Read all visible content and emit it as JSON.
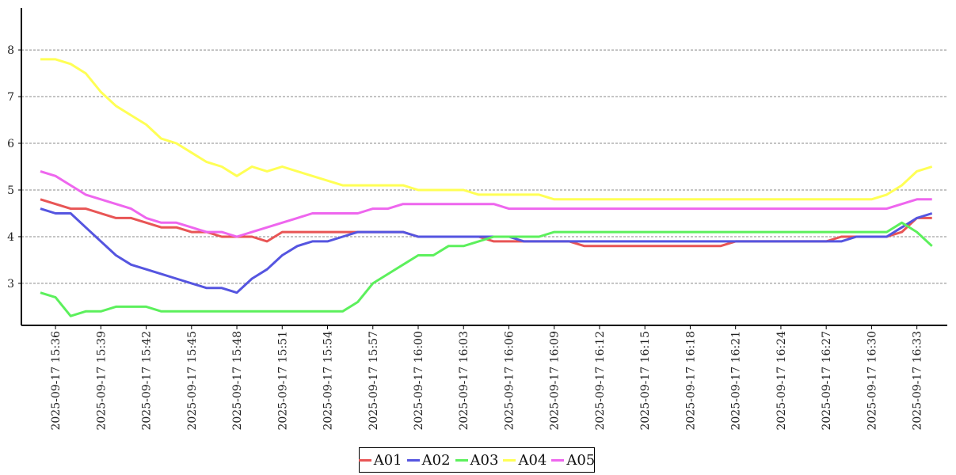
{
  "chart_data": {
    "type": "line",
    "title": "",
    "xlabel": "",
    "ylabel": "",
    "ylim": [
      2.1,
      8.9
    ],
    "yticks": [
      3,
      4,
      5,
      6,
      7,
      8
    ],
    "grid": "horizontal dashed",
    "legend_position": "bottom-center",
    "x_tick_labels": [
      "2025-09-17 15:36",
      "2025-09-17 15:39",
      "2025-09-17 15:42",
      "2025-09-17 15:45",
      "2025-09-17 15:48",
      "2025-09-17 15:51",
      "2025-09-17 15:54",
      "2025-09-17 15:57",
      "2025-09-17 16:00",
      "2025-09-17 16:03",
      "2025-09-17 16:06",
      "2025-09-17 16:09",
      "2025-09-17 16:12",
      "2025-09-17 16:15",
      "2025-09-17 16:18",
      "2025-09-17 16:21",
      "2025-09-17 16:24",
      "2025-09-17 16:27",
      "2025-09-17 16:30",
      "2025-09-17 16:33"
    ],
    "x": [
      "15:35",
      "15:36",
      "15:37",
      "15:38",
      "15:39",
      "15:40",
      "15:41",
      "15:42",
      "15:43",
      "15:44",
      "15:45",
      "15:46",
      "15:47",
      "15:48",
      "15:49",
      "15:50",
      "15:51",
      "15:52",
      "15:53",
      "15:54",
      "15:55",
      "15:56",
      "15:57",
      "15:58",
      "15:59",
      "16:00",
      "16:01",
      "16:02",
      "16:03",
      "16:04",
      "16:05",
      "16:06",
      "16:07",
      "16:08",
      "16:09",
      "16:10",
      "16:11",
      "16:12",
      "16:13",
      "16:14",
      "16:15",
      "16:16",
      "16:17",
      "16:18",
      "16:19",
      "16:20",
      "16:21",
      "16:22",
      "16:23",
      "16:24",
      "16:25",
      "16:26",
      "16:27",
      "16:28",
      "16:29",
      "16:30",
      "16:31",
      "16:32",
      "16:33",
      "16:34"
    ],
    "series": [
      {
        "name": "A01",
        "color": "#e85555",
        "values": [
          4.8,
          4.7,
          4.6,
          4.6,
          4.5,
          4.4,
          4.4,
          4.3,
          4.2,
          4.2,
          4.1,
          4.1,
          4.0,
          4.0,
          4.0,
          3.9,
          4.1,
          4.1,
          4.1,
          4.1,
          4.1,
          4.1,
          4.1,
          4.1,
          4.1,
          4.0,
          4.0,
          4.0,
          4.0,
          4.0,
          3.9,
          3.9,
          3.9,
          3.9,
          3.9,
          3.9,
          3.8,
          3.8,
          3.8,
          3.8,
          3.8,
          3.8,
          3.8,
          3.8,
          3.8,
          3.8,
          3.9,
          3.9,
          3.9,
          3.9,
          3.9,
          3.9,
          3.9,
          4.0,
          4.0,
          4.0,
          4.0,
          4.1,
          4.4,
          4.4
        ]
      },
      {
        "name": "A02",
        "color": "#5555e0",
        "values": [
          4.6,
          4.5,
          4.5,
          4.2,
          3.9,
          3.6,
          3.4,
          3.3,
          3.2,
          3.1,
          3.0,
          2.9,
          2.9,
          2.8,
          3.1,
          3.3,
          3.6,
          3.8,
          3.9,
          3.9,
          4.0,
          4.1,
          4.1,
          4.1,
          4.1,
          4.0,
          4.0,
          4.0,
          4.0,
          4.0,
          4.0,
          4.0,
          3.9,
          3.9,
          3.9,
          3.9,
          3.9,
          3.9,
          3.9,
          3.9,
          3.9,
          3.9,
          3.9,
          3.9,
          3.9,
          3.9,
          3.9,
          3.9,
          3.9,
          3.9,
          3.9,
          3.9,
          3.9,
          3.9,
          4.0,
          4.0,
          4.0,
          4.2,
          4.4,
          4.5
        ]
      },
      {
        "name": "A03",
        "color": "#5cf05c",
        "values": [
          2.8,
          2.7,
          2.3,
          2.4,
          2.4,
          2.5,
          2.5,
          2.5,
          2.4,
          2.4,
          2.4,
          2.4,
          2.4,
          2.4,
          2.4,
          2.4,
          2.4,
          2.4,
          2.4,
          2.4,
          2.4,
          2.6,
          3.0,
          3.2,
          3.4,
          3.6,
          3.6,
          3.8,
          3.8,
          3.9,
          4.0,
          4.0,
          4.0,
          4.0,
          4.1,
          4.1,
          4.1,
          4.1,
          4.1,
          4.1,
          4.1,
          4.1,
          4.1,
          4.1,
          4.1,
          4.1,
          4.1,
          4.1,
          4.1,
          4.1,
          4.1,
          4.1,
          4.1,
          4.1,
          4.1,
          4.1,
          4.1,
          4.3,
          4.1,
          3.8
        ]
      },
      {
        "name": "A04",
        "color": "#ffff55",
        "values": [
          7.8,
          7.8,
          7.7,
          7.5,
          7.1,
          6.8,
          6.6,
          6.4,
          6.1,
          6.0,
          5.8,
          5.6,
          5.5,
          5.3,
          5.5,
          5.4,
          5.5,
          5.4,
          5.3,
          5.2,
          5.1,
          5.1,
          5.1,
          5.1,
          5.1,
          5.0,
          5.0,
          5.0,
          5.0,
          4.9,
          4.9,
          4.9,
          4.9,
          4.9,
          4.8,
          4.8,
          4.8,
          4.8,
          4.8,
          4.8,
          4.8,
          4.8,
          4.8,
          4.8,
          4.8,
          4.8,
          4.8,
          4.8,
          4.8,
          4.8,
          4.8,
          4.8,
          4.8,
          4.8,
          4.8,
          4.8,
          4.9,
          5.1,
          5.4,
          5.5
        ]
      },
      {
        "name": "A05",
        "color": "#ee66ee",
        "values": [
          5.4,
          5.3,
          5.1,
          4.9,
          4.8,
          4.7,
          4.6,
          4.4,
          4.3,
          4.3,
          4.2,
          4.1,
          4.1,
          4.0,
          4.1,
          4.2,
          4.3,
          4.4,
          4.5,
          4.5,
          4.5,
          4.5,
          4.6,
          4.6,
          4.7,
          4.7,
          4.7,
          4.7,
          4.7,
          4.7,
          4.7,
          4.6,
          4.6,
          4.6,
          4.6,
          4.6,
          4.6,
          4.6,
          4.6,
          4.6,
          4.6,
          4.6,
          4.6,
          4.6,
          4.6,
          4.6,
          4.6,
          4.6,
          4.6,
          4.6,
          4.6,
          4.6,
          4.6,
          4.6,
          4.6,
          4.6,
          4.6,
          4.7,
          4.8,
          4.8
        ]
      }
    ]
  }
}
